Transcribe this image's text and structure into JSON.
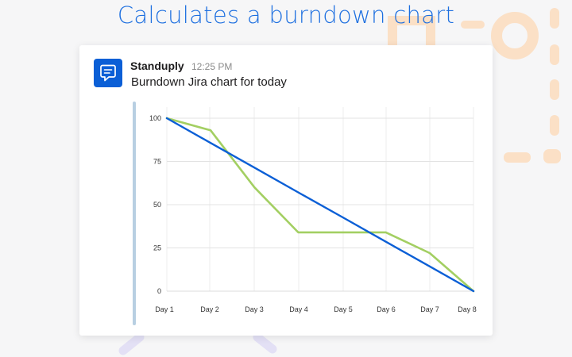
{
  "headline": "Calculates a burndown chart",
  "message": {
    "app_icon": "speech-bubble-icon",
    "app_name": "Standuply",
    "time": "12:25 PM",
    "text": "Burndown Jira chart for today"
  },
  "chart_data": {
    "type": "line",
    "categories": [
      "Day 1",
      "Day 2",
      "Day 3",
      "Day 4",
      "Day 5",
      "Day 6",
      "Day 7",
      "Day 8"
    ],
    "series": [
      {
        "values": [
          100,
          93,
          60,
          34,
          34,
          34,
          22,
          0
        ],
        "color": "#a3cf62"
      },
      {
        "values": [
          100,
          85.7,
          71.4,
          57.1,
          42.9,
          28.6,
          14.3,
          0
        ],
        "color": "#0b5fd6"
      }
    ],
    "yticks": [
      100,
      75,
      50,
      25,
      0
    ],
    "ylim": [
      0,
      100
    ],
    "grid": true,
    "title": "",
    "xlabel": "",
    "ylabel": ""
  },
  "colors": {
    "accent": "#1d6fe0",
    "deco_orange": "#fbe0c6",
    "deco_purple": "#e3e0f5"
  }
}
